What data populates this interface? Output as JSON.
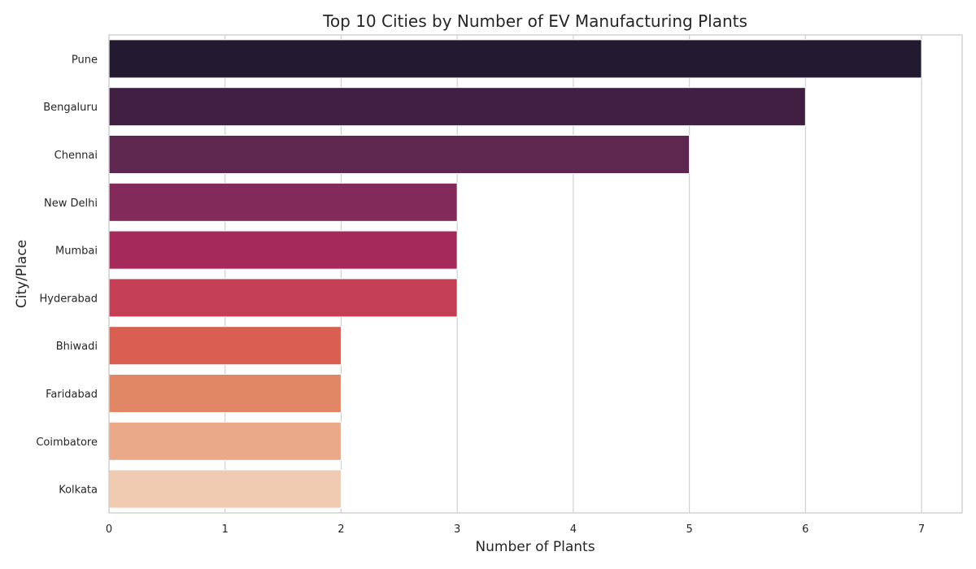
{
  "chart_data": {
    "type": "bar",
    "orientation": "horizontal",
    "title": "Top 10 Cities by Number of EV Manufacturing Plants",
    "xlabel": "Number of Plants",
    "ylabel": "City/Place",
    "categories": [
      "Pune",
      "Bengaluru",
      "Chennai",
      "New Delhi",
      "Mumbai",
      "Hyderabad",
      "Bhiwadi",
      "Faridabad",
      "Coimbatore",
      "Kolkata"
    ],
    "values": [
      7,
      6,
      5,
      3,
      3,
      3,
      2,
      2,
      2,
      2
    ],
    "colors": [
      "#221a31",
      "#401f43",
      "#5e2750",
      "#822a5a",
      "#a5295b",
      "#c43f56",
      "#d85f51",
      "#e28766",
      "#eaa988",
      "#f0cbb2"
    ],
    "xlim": [
      0,
      7.35
    ],
    "xticks": [
      0,
      1,
      2,
      3,
      4,
      5,
      6,
      7
    ],
    "grid": true,
    "legend": "none"
  }
}
